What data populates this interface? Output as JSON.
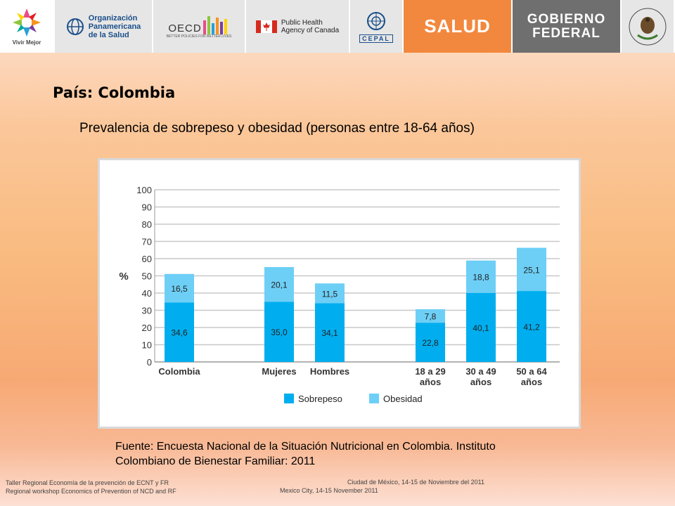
{
  "header": {
    "vivir_mejor": "Vivir Mejor",
    "ops_line1": "Organización",
    "ops_line2": "Panamericana",
    "ops_line3": "de la Salud",
    "oecd": "OECD",
    "oecd_tagline": "BETTER POLICIES FOR BETTER LIVES",
    "phac_line1": "Public Health",
    "phac_line2": "Agency of Canada",
    "cepal": "CEPAL",
    "salud": "SALUD",
    "gobierno": "GOBIERNO",
    "federal": "FEDERAL"
  },
  "slide": {
    "country_title": "País: Colombia",
    "subtitle": "Prevalencia de sobrepeso y obesidad (personas entre 18-64 años)",
    "source_line1": "Fuente: Encuesta Nacional de la Situación Nutricional en Colombia. Instituto",
    "source_line2": "Colombiano de Bienestar Familiar: 2011"
  },
  "footer": {
    "left_line1": "Taller Regional Economía de la prevención de ECNT y FR",
    "left_line2": "Regional workshop Economics of Prevention of NCD and RF",
    "right_line1": "Ciudad de México, 14-15 de Noviembre del 2011",
    "right_line2": "Mexico City, 14-15 November 2011"
  },
  "colors": {
    "sobrepeso": "#00aeef",
    "obesidad": "#6dcff6",
    "grid": "#c8c8c8"
  },
  "chart_data": {
    "type": "bar",
    "stacked": true,
    "categories": [
      [
        "Colombia"
      ],
      [
        "Mujeres"
      ],
      [
        "Hombres"
      ],
      [
        "18 a 29",
        "años"
      ],
      [
        "30 a 49",
        "años"
      ],
      [
        "50 a 64",
        "años"
      ]
    ],
    "series": [
      {
        "name": "Sobrepeso",
        "values": [
          34.6,
          35.0,
          34.1,
          22.8,
          40.1,
          41.2
        ],
        "labels": [
          "34,6",
          "35,0",
          "34,1",
          "22,8",
          "40,1",
          "41,2"
        ]
      },
      {
        "name": "Obesidad",
        "values": [
          16.5,
          20.1,
          11.5,
          7.8,
          18.8,
          25.1
        ],
        "labels": [
          "16,5",
          "20,1",
          "11,5",
          "7,8",
          "18,8",
          "25,1"
        ]
      }
    ],
    "ylabel": "%",
    "ylim": [
      0,
      100
    ],
    "yticks": [
      0,
      10,
      20,
      30,
      40,
      50,
      60,
      70,
      80,
      90,
      100
    ],
    "grid": true,
    "legend": "bottom-center"
  }
}
